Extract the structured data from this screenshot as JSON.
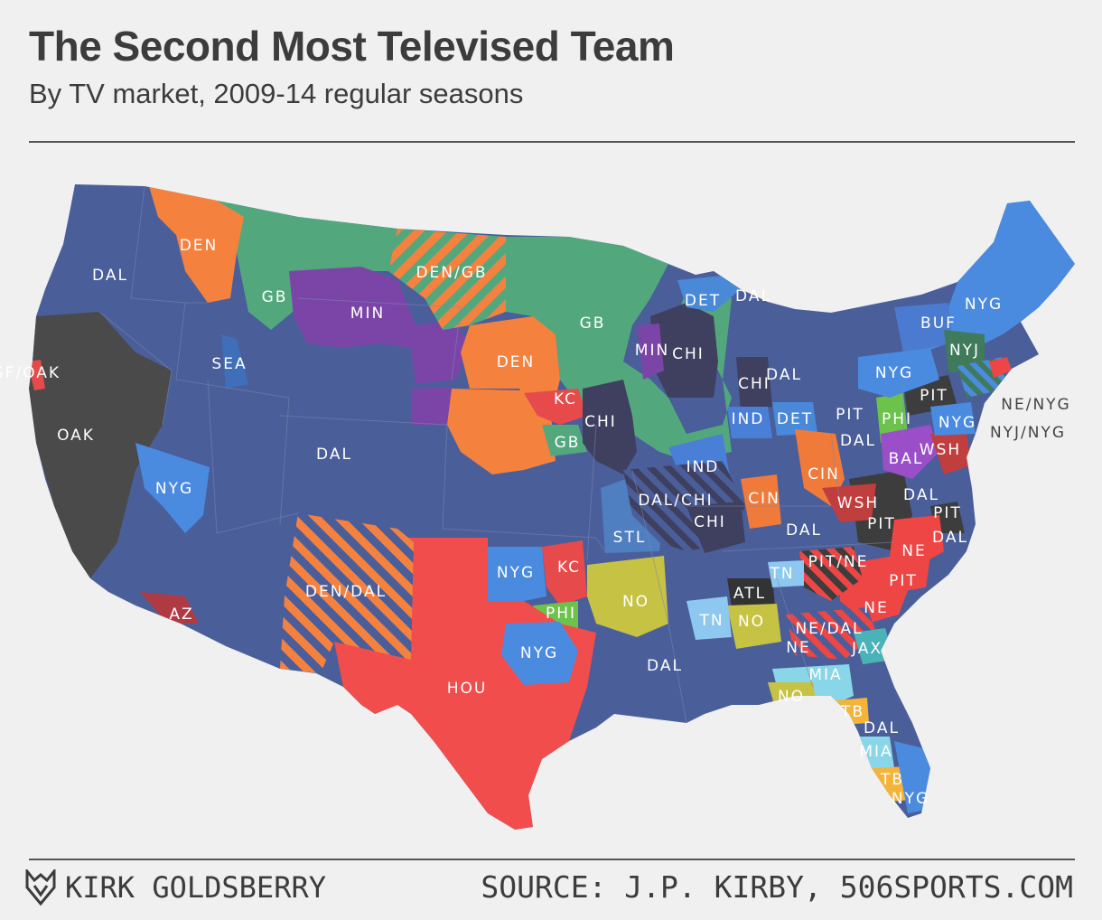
{
  "title": "The Second Most Televised Team",
  "subtitle": "By TV market, 2009-14 regular seasons",
  "footer": {
    "author": "KIRK GOLDSBERRY",
    "source": "SOURCE: J.P. KIRBY, 506SPORTS.COM"
  },
  "colors": {
    "DAL": "#4a5e9a",
    "NYG": "#4a8be0",
    "DEN": "#f5813f",
    "GB": "#52a87c",
    "MIN": "#7b45a8",
    "OAK": "#4a4a4a",
    "CHI": "#3f3f5f",
    "KC": "#e64a4a",
    "HOU": "#f24d4d",
    "NO": "#c6c243",
    "PHI": "#6cc24a",
    "ATL": "#333333",
    "PIT": "#3d3d3d",
    "NE": "#ee4545",
    "TN": "#8ec8f0",
    "MIA": "#88d6e8",
    "TB": "#f4b43a",
    "JAX": "#4ab3b8",
    "BAL": "#9a4fc8",
    "WSH": "#c03e3e",
    "AZ": "#b03a42",
    "SEA": "#3f6fb8",
    "STL": "#4f7fc0",
    "IND": "#4a7fd8",
    "DET": "#4a88d8",
    "CIN": "#f07a3a",
    "BUF": "#4a7bd0",
    "NYJ": "#3f7a5a"
  },
  "map_labels": [
    "DEN",
    "DAL",
    "GB",
    "MIN",
    "DEN/GB",
    "SF/OAK",
    "SEA",
    "OAK",
    "NYG",
    "DAL",
    "DEN",
    "GB",
    "MIN",
    "CHI",
    "KC",
    "CHI",
    "GB",
    "DET",
    "DAL",
    "CHI",
    "DAL",
    "IND",
    "DET",
    "PIT",
    "PHI",
    "DAL",
    "IND",
    "DAL/CHI",
    "CHI",
    "CIN",
    "CIN",
    "STL",
    "DEN/DAL",
    "NYG",
    "KC",
    "NO",
    "PHI",
    "NYG",
    "AZ",
    "HOU",
    "DAL",
    "TN",
    "NO",
    "ATL",
    "TN",
    "PIT/NE",
    "NE",
    "PIT",
    "NE",
    "NE/DAL",
    "NE",
    "JAX",
    "MIA",
    "NO",
    "TB",
    "DAL",
    "MIA",
    "TB",
    "NYG",
    "WSH",
    "DAL",
    "PIT",
    "DAL",
    "PIT",
    "BAL",
    "WSH",
    "NYG",
    "NYG",
    "BUF",
    "NYJ",
    "NYG",
    "PIT",
    "NE/NYG",
    "NYJ/NYG",
    "DAL"
  ]
}
